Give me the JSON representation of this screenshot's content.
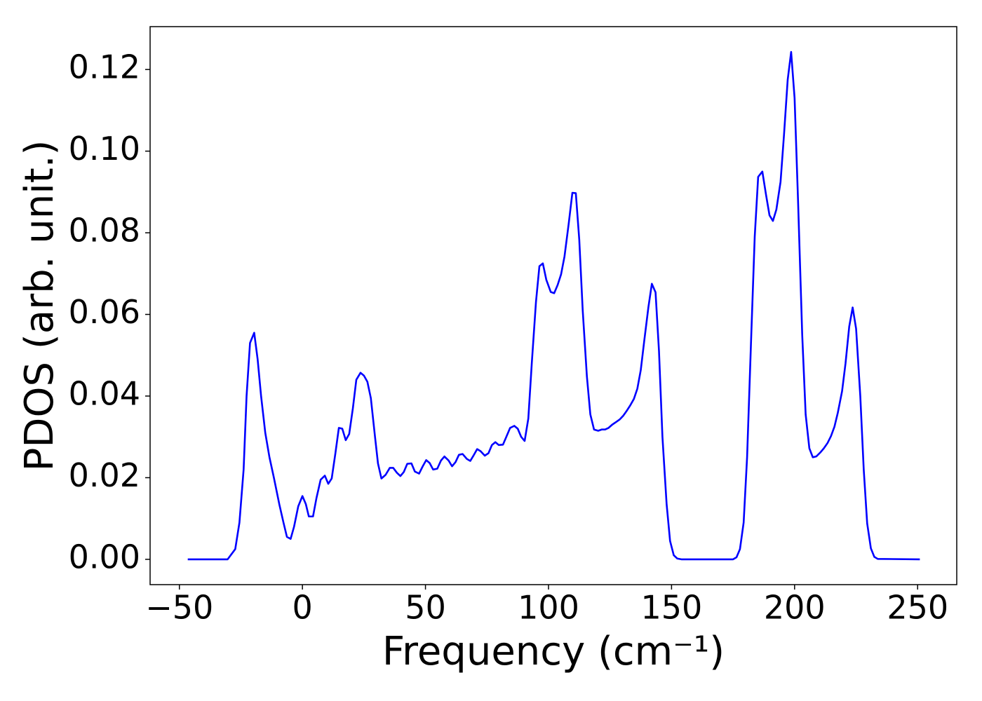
{
  "chart_data": {
    "type": "line",
    "xlabel": "Frequency (cm⁻¹)",
    "ylabel": "PDOS (arb. unit.)",
    "xlim": [
      -61.9,
      265.9
    ],
    "ylim": [
      -0.0062,
      0.1305
    ],
    "xticks": [
      {
        "value": -50,
        "label": "−50"
      },
      0,
      50,
      100,
      150,
      200,
      250
    ],
    "yticks": [
      {
        "value": 0,
        "label": "0.00"
      },
      {
        "value": 0.02,
        "label": "0.02"
      },
      {
        "value": 0.04,
        "label": "0.04"
      },
      {
        "value": 0.06,
        "label": "0.06"
      },
      {
        "value": 0.08,
        "label": "0.08"
      },
      {
        "value": 0.1,
        "label": "0.10"
      },
      {
        "value": 0.12,
        "label": "0.12"
      }
    ],
    "grid": false,
    "series": [
      {
        "color": "#0000ff",
        "x": [
          -46.6,
          -30.4,
          -27.3,
          -25.6,
          -23.9,
          -22.7,
          -21.3,
          -19.6,
          -18.2,
          -16.8,
          -15.1,
          -13.4,
          -11.6,
          -9.4,
          -7.7,
          -6.3,
          -4.8,
          -3.4,
          -1.7,
          0,
          1.4,
          2.6,
          4.3,
          5.7,
          7.4,
          9.1,
          10.5,
          11.9,
          13.4,
          14.8,
          16.2,
          17.6,
          19.0,
          20.5,
          21.9,
          23.6,
          25,
          26.4,
          27.8,
          29.5,
          30.7,
          32.1,
          33.8,
          35.5,
          36.9,
          38.4,
          39.8,
          41.2,
          42.6,
          44.3,
          45.7,
          47.4,
          48.9,
          50.3,
          51.7,
          53.1,
          54.8,
          56.3,
          57.7,
          59.4,
          60.8,
          62.2,
          63.6,
          65.1,
          66.8,
          68.2,
          69.6,
          71.0,
          72.4,
          74.1,
          75.6,
          77.0,
          78.4,
          79.8,
          81.5,
          83.0,
          84.4,
          86.1,
          87.5,
          88.9,
          90.3,
          91.8,
          93.2,
          94.9,
          96.3,
          97.7,
          99.1,
          100.9,
          102.3,
          103.7,
          105.1,
          106.5,
          108.2,
          109.7,
          111.1,
          112.5,
          113.9,
          115.6,
          117.0,
          118.5,
          120.2,
          121.6,
          123.0,
          124.4,
          125.9,
          127.6,
          129.0,
          130.4,
          131.8,
          133.2,
          134.7,
          136.1,
          137.5,
          138.9,
          140.6,
          142.0,
          143.5,
          144.9,
          146.3,
          148.0,
          149.4,
          150.9,
          152.3,
          154,
          175,
          176.4,
          177.8,
          179.3,
          180.7,
          182.4,
          183.8,
          185.2,
          186.9,
          188.4,
          189.8,
          191.2,
          192.6,
          194.3,
          195.7,
          197.2,
          198.6,
          200.0,
          201.4,
          203.1,
          204.5,
          206.0,
          207.4,
          208.8,
          210.5,
          211.9,
          213.4,
          214.8,
          216.2,
          217.6,
          219.3,
          220.7,
          222.2,
          223.6,
          225.0,
          226.7,
          228.1,
          229.5,
          231.0,
          232.4,
          233.8,
          250.9
        ],
        "values": [
          0,
          0,
          0.0025,
          0.009,
          0.022,
          0.04,
          0.053,
          0.0555,
          0.049,
          0.04,
          0.031,
          0.025,
          0.02,
          0.0135,
          0.009,
          0.0055,
          0.005,
          0.008,
          0.013,
          0.0155,
          0.0135,
          0.0105,
          0.0105,
          0.015,
          0.0195,
          0.0205,
          0.0185,
          0.0198,
          0.026,
          0.0322,
          0.032,
          0.0292,
          0.0307,
          0.037,
          0.044,
          0.0457,
          0.045,
          0.0435,
          0.0395,
          0.03,
          0.0235,
          0.0198,
          0.0207,
          0.0224,
          0.0224,
          0.0212,
          0.0204,
          0.0214,
          0.0234,
          0.0235,
          0.0215,
          0.021,
          0.0228,
          0.0243,
          0.0236,
          0.022,
          0.0222,
          0.0242,
          0.0252,
          0.0242,
          0.0228,
          0.0238,
          0.0256,
          0.0258,
          0.0246,
          0.0241,
          0.0255,
          0.027,
          0.0265,
          0.0254,
          0.026,
          0.028,
          0.0287,
          0.028,
          0.0281,
          0.0302,
          0.0322,
          0.0327,
          0.032,
          0.03,
          0.029,
          0.0345,
          0.048,
          0.063,
          0.0718,
          0.0725,
          0.0685,
          0.0655,
          0.0652,
          0.0672,
          0.0698,
          0.0742,
          0.0822,
          0.0898,
          0.0897,
          0.0783,
          0.061,
          0.0448,
          0.0355,
          0.0318,
          0.0315,
          0.0318,
          0.0318,
          0.0322,
          0.033,
          0.0337,
          0.0343,
          0.0352,
          0.0364,
          0.0377,
          0.0393,
          0.0418,
          0.0464,
          0.0535,
          0.0618,
          0.0675,
          0.0654,
          0.051,
          0.03,
          0.0135,
          0.0045,
          0.001,
          0.0002,
          0,
          0,
          0.0005,
          0.0025,
          0.009,
          0.025,
          0.055,
          0.079,
          0.0937,
          0.095,
          0.0893,
          0.0843,
          0.0829,
          0.0857,
          0.0925,
          0.104,
          0.1175,
          0.1243,
          0.113,
          0.088,
          0.055,
          0.0355,
          0.0272,
          0.025,
          0.0252,
          0.0262,
          0.0272,
          0.0285,
          0.0302,
          0.0325,
          0.036,
          0.0412,
          0.048,
          0.057,
          0.0617,
          0.0565,
          0.04,
          0.022,
          0.0088,
          0.0027,
          0.0006,
          0.0001,
          0
        ]
      }
    ]
  }
}
